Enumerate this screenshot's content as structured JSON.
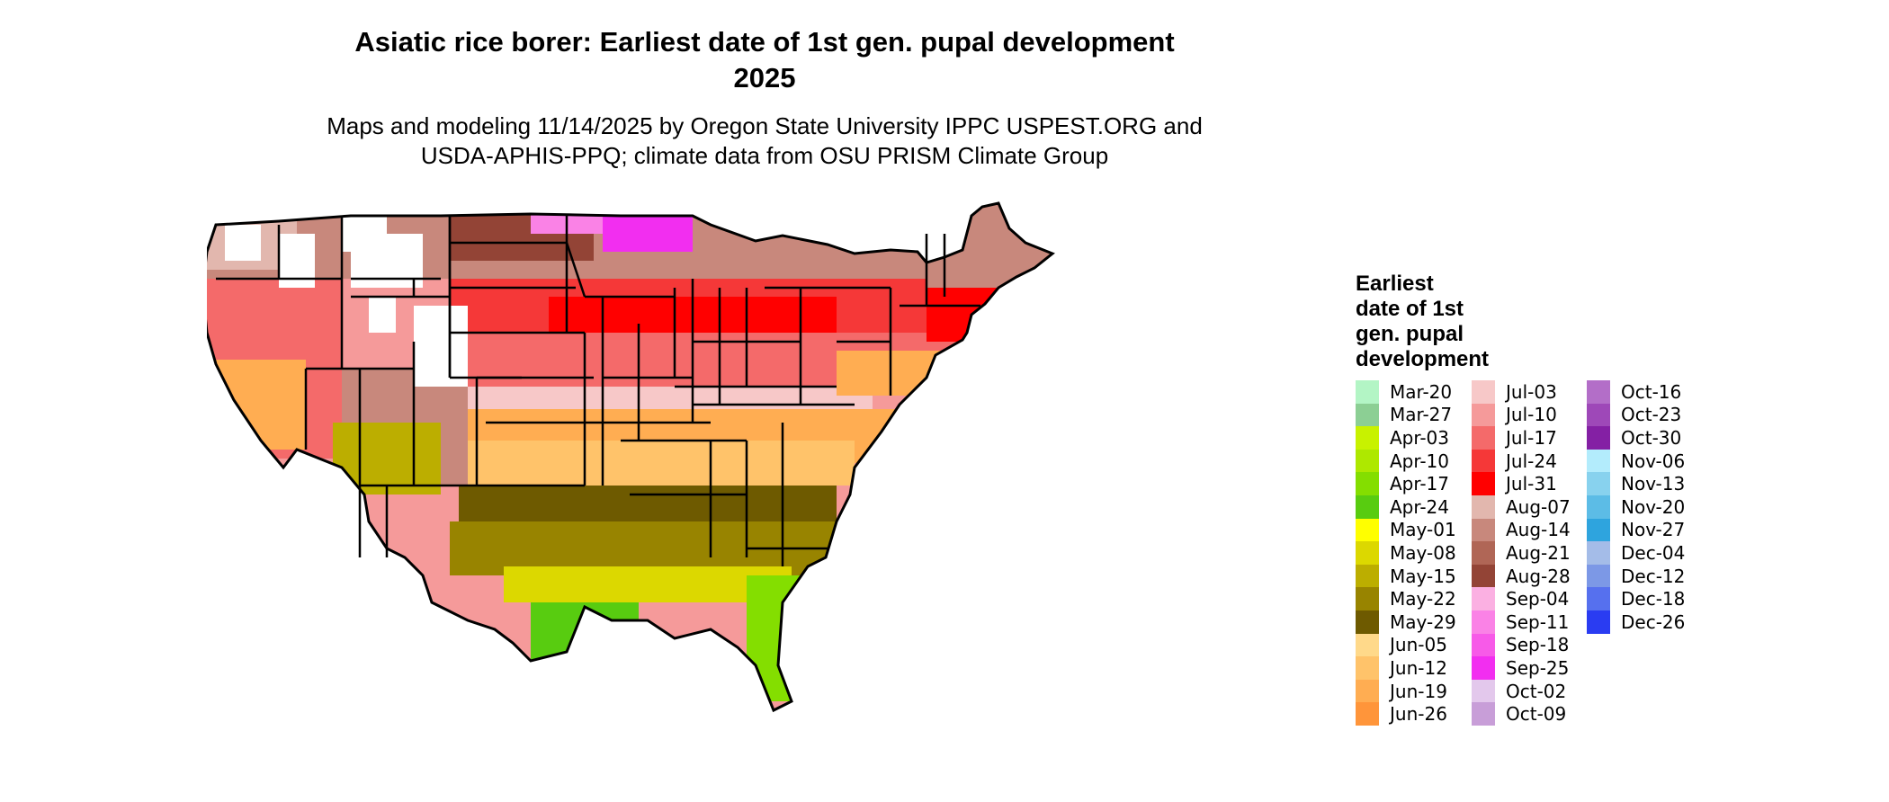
{
  "title": {
    "line1": "Asiatic rice borer: Earliest date of 1st gen. pupal development",
    "line2": "2025"
  },
  "subtitle": {
    "line1": "Maps and modeling 11/14/2025 by Oregon State University IPPC USPEST.ORG and",
    "line2": "USDA-APHIS-PPQ; climate data from OSU PRISM Climate Group"
  },
  "legend": {
    "title_lines": [
      "Earliest",
      "date of 1st",
      "gen. pupal",
      "development"
    ],
    "columns": [
      [
        {
          "label": "Mar-20",
          "color": "#b3f5c5"
        },
        {
          "label": "Mar-27",
          "color": "#8ccf94"
        },
        {
          "label": "Apr-03",
          "color": "#c8f200"
        },
        {
          "label": "Apr-10",
          "color": "#aee800"
        },
        {
          "label": "Apr-17",
          "color": "#84de00"
        },
        {
          "label": "Apr-24",
          "color": "#58cc10"
        },
        {
          "label": "May-01",
          "color": "#ffff00"
        },
        {
          "label": "May-08",
          "color": "#dcd800"
        },
        {
          "label": "May-15",
          "color": "#bcae00"
        },
        {
          "label": "May-22",
          "color": "#988400"
        },
        {
          "label": "May-29",
          "color": "#6e5a00"
        },
        {
          "label": "Jun-05",
          "color": "#ffd98a"
        },
        {
          "label": "Jun-12",
          "color": "#ffc36a"
        },
        {
          "label": "Jun-19",
          "color": "#ffad52"
        },
        {
          "label": "Jun-26",
          "color": "#ff953a"
        }
      ],
      [
        {
          "label": "Jul-03",
          "color": "#f7c8c8"
        },
        {
          "label": "Jul-10",
          "color": "#f59a9a"
        },
        {
          "label": "Jul-17",
          "color": "#f46a6a"
        },
        {
          "label": "Jul-24",
          "color": "#f53838"
        },
        {
          "label": "Jul-31",
          "color": "#ff0000"
        },
        {
          "label": "Aug-07",
          "color": "#e2b7ae"
        },
        {
          "label": "Aug-14",
          "color": "#c8887c"
        },
        {
          "label": "Aug-21",
          "color": "#b06656"
        },
        {
          "label": "Aug-28",
          "color": "#934436"
        },
        {
          "label": "Sep-04",
          "color": "#fbb0e2"
        },
        {
          "label": "Sep-11",
          "color": "#fa82e6"
        },
        {
          "label": "Sep-18",
          "color": "#f75ae8"
        },
        {
          "label": "Sep-25",
          "color": "#f22ef0"
        },
        {
          "label": "Oct-02",
          "color": "#e3c8ec"
        },
        {
          "label": "Oct-09",
          "color": "#c89ed8"
        }
      ],
      [
        {
          "label": "Oct-16",
          "color": "#b36ec8"
        },
        {
          "label": "Oct-23",
          "color": "#9e48b8"
        },
        {
          "label": "Oct-30",
          "color": "#8420a4"
        },
        {
          "label": "Nov-06",
          "color": "#b3ecfc"
        },
        {
          "label": "Nov-13",
          "color": "#88d2ee"
        },
        {
          "label": "Nov-20",
          "color": "#5cbce6"
        },
        {
          "label": "Nov-27",
          "color": "#2ea4de"
        },
        {
          "label": "Dec-04",
          "color": "#a4bce8"
        },
        {
          "label": "Dec-12",
          "color": "#7c98e6"
        },
        {
          "label": "Dec-18",
          "color": "#5670ee"
        },
        {
          "label": "Dec-26",
          "color": "#2a3cf2"
        }
      ]
    ]
  },
  "map": {
    "outline_color": "#000000",
    "background": "#ffffff"
  }
}
